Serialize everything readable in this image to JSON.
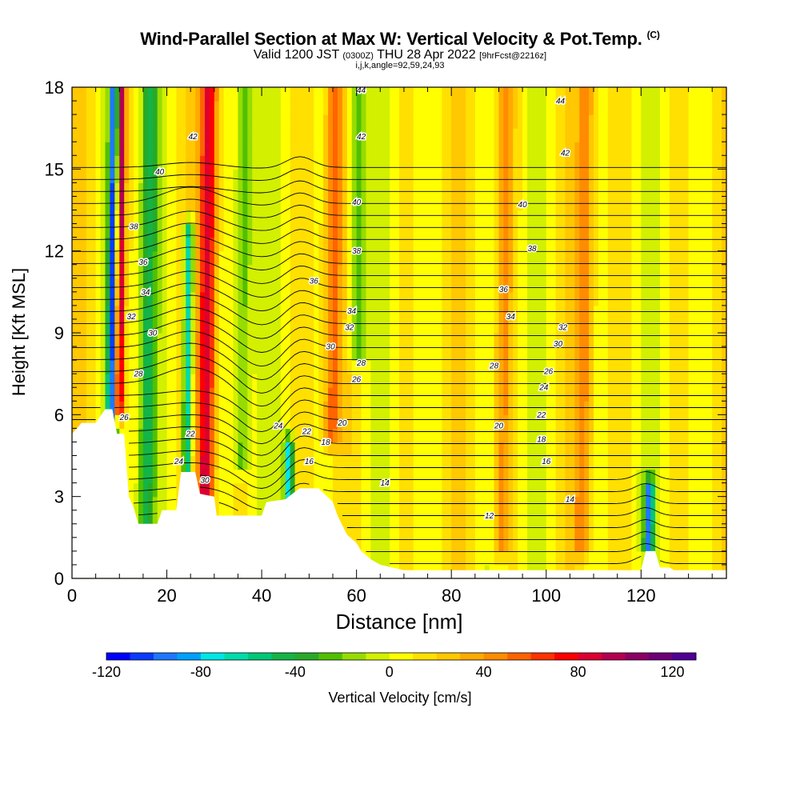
{
  "header": {
    "title": "Wind-Parallel Section at Max W: Vertical Velocity & Pot.Temp.",
    "title_mark": "(C)",
    "valid_pre": "Valid 1200 JST",
    "valid_utc": "(0300Z)",
    "valid_date": "THU 28 Apr 2022",
    "valid_fcst": "[9hrFcst@2216z]",
    "subtitle": "i,j,k,angle=92,59,24,93"
  },
  "chart_data": {
    "type": "heatmap",
    "xlabel": "Distance [nm]",
    "ylabel": "Height [Kft MSL]",
    "xlim": [
      0,
      138
    ],
    "ylim": [
      0,
      18
    ],
    "x_ticks": [
      0,
      20,
      40,
      60,
      80,
      100,
      120
    ],
    "y_ticks": [
      0,
      3,
      6,
      9,
      12,
      15,
      18
    ],
    "colorbar": {
      "label": "Vertical Velocity [cm/s]",
      "range": [
        -120,
        130
      ],
      "step": 10,
      "tick_values": [
        -120,
        -80,
        -40,
        0,
        40,
        80,
        120
      ],
      "colors": [
        "#0000ff",
        "#0a3cff",
        "#1e78ff",
        "#00a0ff",
        "#00e6e6",
        "#00dcaa",
        "#00c878",
        "#14b446",
        "#28aa28",
        "#50c000",
        "#96dc00",
        "#d2f000",
        "#ffff00",
        "#ffe000",
        "#ffc800",
        "#ffaa00",
        "#ff8c00",
        "#ff6400",
        "#ff3200",
        "#ff0000",
        "#dc0032",
        "#b40050",
        "#8c0064",
        "#6e0078",
        "#500096"
      ]
    },
    "w_features": [
      {
        "x": 8.5,
        "z": [
          2,
          18
        ],
        "w": -110
      },
      {
        "x": 10,
        "z": [
          6,
          18
        ],
        "w": 100
      },
      {
        "x": 16,
        "z": [
          2,
          18
        ],
        "w": -50
      },
      {
        "x": 24.5,
        "z": [
          3,
          13
        ],
        "w": -85
      },
      {
        "x": 28.5,
        "z": [
          2,
          18
        ],
        "w": 80
      },
      {
        "x": 36,
        "z": [
          4,
          18
        ],
        "w": -35
      },
      {
        "x": 46,
        "z": [
          2.8,
          5
        ],
        "w": -90
      },
      {
        "x": 55,
        "z": [
          5,
          18
        ],
        "w": 45
      },
      {
        "x": 60,
        "z": [
          8,
          18
        ],
        "w": -40
      },
      {
        "x": 91,
        "z": [
          1,
          18
        ],
        "w": 35
      },
      {
        "x": 108,
        "z": [
          1,
          18
        ],
        "w": 35
      },
      {
        "x": 122,
        "z": [
          1.2,
          3.5
        ],
        "w": -90
      }
    ],
    "theta_labels": [
      {
        "x": 61,
        "z": 17.9,
        "label": "44"
      },
      {
        "x": 103,
        "z": 17.5,
        "label": "44"
      },
      {
        "x": 25.5,
        "z": 16.2,
        "label": "42"
      },
      {
        "x": 61,
        "z": 16.2,
        "label": "42"
      },
      {
        "x": 104,
        "z": 15.6,
        "label": "42"
      },
      {
        "x": 18.5,
        "z": 14.9,
        "label": "40"
      },
      {
        "x": 60,
        "z": 13.8,
        "label": "40"
      },
      {
        "x": 95,
        "z": 13.7,
        "label": "40"
      },
      {
        "x": 13,
        "z": 12.9,
        "label": "38"
      },
      {
        "x": 60,
        "z": 12.0,
        "label": "38"
      },
      {
        "x": 97,
        "z": 12.1,
        "label": "38"
      },
      {
        "x": 15,
        "z": 11.6,
        "label": "36"
      },
      {
        "x": 51,
        "z": 10.9,
        "label": "36"
      },
      {
        "x": 91,
        "z": 10.6,
        "label": "36"
      },
      {
        "x": 15.5,
        "z": 10.5,
        "label": "34"
      },
      {
        "x": 59,
        "z": 9.8,
        "label": "34"
      },
      {
        "x": 92.5,
        "z": 9.6,
        "label": "34"
      },
      {
        "x": 12.5,
        "z": 9.6,
        "label": "32"
      },
      {
        "x": 58.5,
        "z": 9.2,
        "label": "32"
      },
      {
        "x": 103.5,
        "z": 9.2,
        "label": "32"
      },
      {
        "x": 17,
        "z": 9.0,
        "label": "30"
      },
      {
        "x": 54.5,
        "z": 8.5,
        "label": "30"
      },
      {
        "x": 102.5,
        "z": 8.6,
        "label": "30"
      },
      {
        "x": 14,
        "z": 7.5,
        "label": "28"
      },
      {
        "x": 61,
        "z": 7.9,
        "label": "28"
      },
      {
        "x": 89,
        "z": 7.8,
        "label": "28"
      },
      {
        "x": 60,
        "z": 7.3,
        "label": "26"
      },
      {
        "x": 100.5,
        "z": 7.6,
        "label": "26"
      },
      {
        "x": 99.5,
        "z": 7.0,
        "label": "24"
      },
      {
        "x": 11,
        "z": 5.9,
        "label": "26"
      },
      {
        "x": 43.5,
        "z": 5.6,
        "label": "24"
      },
      {
        "x": 99,
        "z": 6.0,
        "label": "22"
      },
      {
        "x": 25,
        "z": 5.3,
        "label": "22"
      },
      {
        "x": 49.5,
        "z": 5.4,
        "label": "22"
      },
      {
        "x": 57,
        "z": 5.7,
        "label": "20"
      },
      {
        "x": 90,
        "z": 5.6,
        "label": "20"
      },
      {
        "x": 53.5,
        "z": 5.0,
        "label": "18"
      },
      {
        "x": 99,
        "z": 5.1,
        "label": "18"
      },
      {
        "x": 22.5,
        "z": 4.3,
        "label": "24"
      },
      {
        "x": 50,
        "z": 4.3,
        "label": "16"
      },
      {
        "x": 100,
        "z": 4.3,
        "label": "16"
      },
      {
        "x": 28,
        "z": 3.6,
        "label": "30"
      },
      {
        "x": 66,
        "z": 3.5,
        "label": "14"
      },
      {
        "x": 105,
        "z": 2.9,
        "label": "14"
      },
      {
        "x": 88,
        "z": 2.3,
        "label": "12"
      }
    ],
    "terrain": [
      [
        0,
        5.3
      ],
      [
        2,
        5.7
      ],
      [
        5,
        5.7
      ],
      [
        7,
        6.2
      ],
      [
        8.5,
        6.2
      ],
      [
        9.5,
        5.3
      ],
      [
        11,
        5.3
      ],
      [
        12,
        3.0
      ],
      [
        13,
        2.6
      ],
      [
        14,
        2.0
      ],
      [
        18,
        2.0
      ],
      [
        19,
        2.5
      ],
      [
        22,
        2.5
      ],
      [
        23,
        3.9
      ],
      [
        26,
        3.9
      ],
      [
        27,
        3.1
      ],
      [
        30,
        3.0
      ],
      [
        30.5,
        2.3
      ],
      [
        35,
        2.3
      ],
      [
        40,
        2.3
      ],
      [
        41,
        2.8
      ],
      [
        45,
        2.9
      ],
      [
        48,
        3.3
      ],
      [
        52,
        3.3
      ],
      [
        55,
        2.8
      ],
      [
        56,
        2.3
      ],
      [
        58,
        1.6
      ],
      [
        60,
        1.3
      ],
      [
        61,
        1.0
      ],
      [
        63,
        0.7
      ],
      [
        65,
        0.5
      ],
      [
        70,
        0.3
      ],
      [
        80,
        0.3
      ],
      [
        120,
        0.3
      ],
      [
        121,
        1.0
      ],
      [
        123,
        1.0
      ],
      [
        124,
        0.4
      ],
      [
        126,
        0.4
      ],
      [
        127,
        0.3
      ],
      [
        138,
        0.3
      ]
    ]
  }
}
